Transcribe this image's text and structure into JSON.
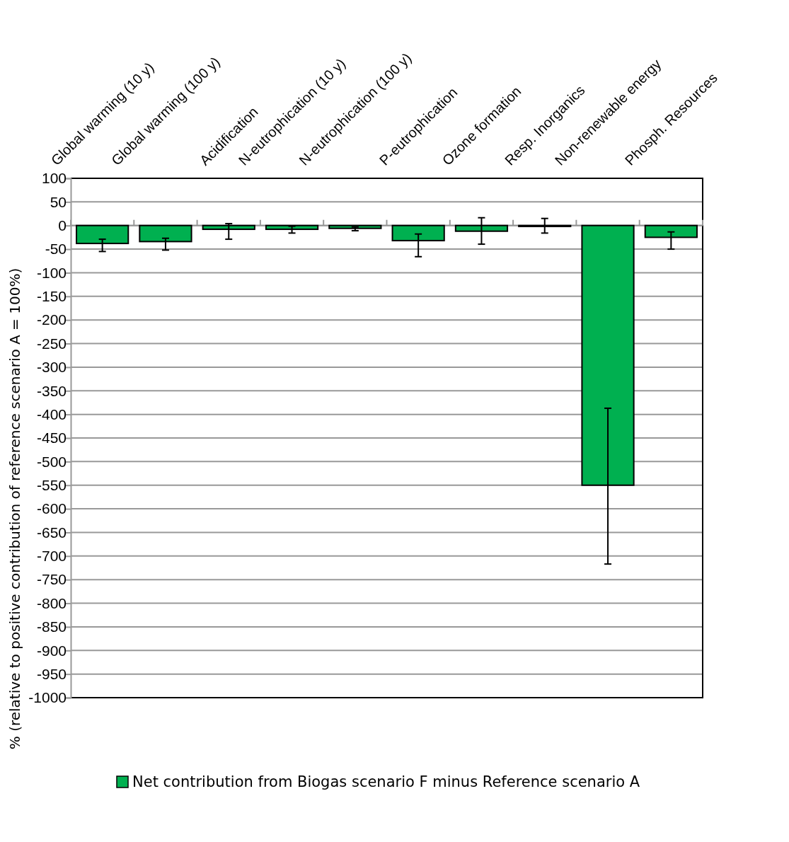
{
  "chart_data": {
    "type": "bar",
    "ylabel": "% (relative to positive contribution of reference scenario A = 100%)",
    "categories": [
      "Global warming (10 y)",
      "Global warming (100 y)",
      "Acidification",
      "N-eutrophication (10 y)",
      "N-eutrophication (100 y)",
      "P-eutrophication",
      "Ozone formation",
      "Resp. Inorganics",
      "Non-renewable energy",
      "Phosph. Resources"
    ],
    "series": [
      {
        "name": "Net contribution from Biogas scenario F minus Reference scenario A",
        "color": "#00b050",
        "values": [
          -38,
          -34,
          -8,
          -8,
          -6,
          -32,
          -12,
          -2,
          -550,
          -25
        ],
        "errors": [
          [
            -55,
            -29
          ],
          [
            -52,
            -27
          ],
          [
            -29,
            4
          ],
          [
            -16,
            -1.5
          ],
          [
            -11,
            -3
          ],
          [
            -66,
            -18
          ],
          [
            -39.5,
            16.5
          ],
          [
            -16,
            15
          ],
          [
            -717,
            -387
          ],
          [
            -50,
            -13.5
          ]
        ]
      }
    ],
    "ylim": [
      -1000,
      100
    ],
    "yticks": [
      100,
      50,
      0,
      -50,
      -100,
      -150,
      -200,
      -250,
      -300,
      -350,
      -400,
      -450,
      -500,
      -550,
      -600,
      -650,
      -700,
      -750,
      -800,
      -850,
      -900,
      -950,
      -1000
    ],
    "grid": "y",
    "legend": "bottom"
  }
}
